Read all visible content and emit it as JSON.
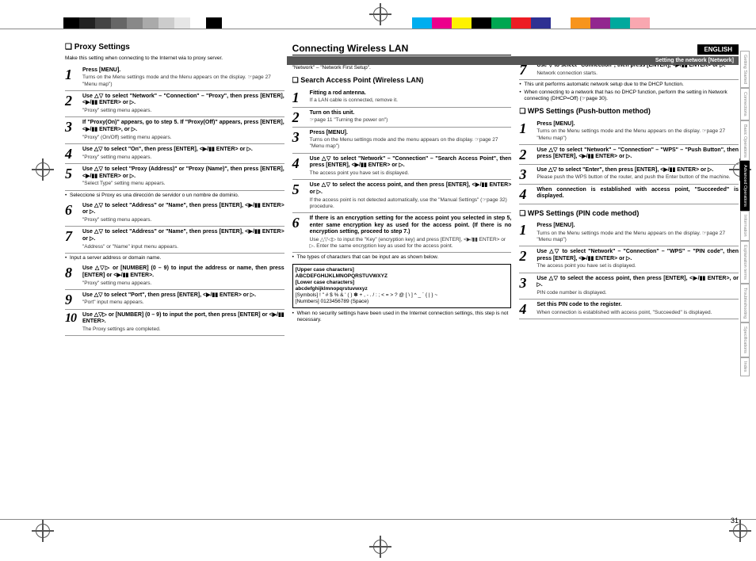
{
  "registration": {
    "grayscale": [
      "#000000",
      "#222222",
      "#444444",
      "#666666",
      "#888888",
      "#aaaaaa",
      "#cccccc",
      "#e6e6e6",
      "#ffffff",
      "#000000"
    ],
    "colorbar": [
      "#00aeef",
      "#ec008c",
      "#fff200",
      "#000000",
      "#00a651",
      "#ed1c24",
      "#2e3192",
      "#ffffff",
      "#f7941d",
      "#92278f",
      "#00a99d",
      "#f9a7b0"
    ]
  },
  "lang_label": "ENGLISH",
  "topbar_label": "Setting the network [Network]",
  "page_number": "31",
  "side_tabs": [
    {
      "label": "Getting Started",
      "active": false
    },
    {
      "label": "Connections",
      "active": false
    },
    {
      "label": "Basic Operations",
      "active": false
    },
    {
      "label": "Advanced Operations",
      "active": true
    },
    {
      "label": "Information",
      "active": false
    },
    {
      "label": "Explanation terms",
      "active": false
    },
    {
      "label": "Troubleshooting",
      "active": false
    },
    {
      "label": "Specifications",
      "active": false
    },
    {
      "label": "Index",
      "active": false
    }
  ],
  "col1": {
    "h2": "❏ Proxy Settings",
    "intro": "Make this setting when connecting to the Internet wia to proxy server.",
    "steps": [
      {
        "n": "1",
        "bold": "Press [MENU].",
        "note": "Turns on the Menu settings mode and the Menu appears on the display. ☞page 27 \"Menu map\")"
      },
      {
        "n": "2",
        "bold": "Use △▽ to select \"Network\" – \"Connection\" – \"Proxy\", then press [ENTER], <▶/▮▮ ENTER> or ▷.",
        "note": "\"Proxy\" setting menu appears."
      },
      {
        "n": "3",
        "bold": "If \"Proxy(On)\" appears, go to step 5.\nIf \"Proxy(Off)\" appears, press [ENTER], <▶/▮▮ ENTER>, or ▷.",
        "note": "\"Proxy\" (On/Off) setting menu appears."
      },
      {
        "n": "4",
        "bold": "Use △▽ to select \"On\", then press [ENTER], <▶/▮▮ ENTER> or ▷.",
        "note": "\"Proxy\" setting menu appears."
      },
      {
        "n": "5",
        "bold": "Use △▽ to select \"Proxy (Address)\" or \"Proxy (Name)\", then press [ENTER], <▶/▮▮ ENTER> or ▷.",
        "note": "\"Select Type\" setting menu appears."
      }
    ],
    "bullets1": [
      "Seleccione si Proxy es una dirección de servidor o un nombre de dominio."
    ],
    "steps2": [
      {
        "n": "6",
        "bold": "Use △▽ to select \"Address\" or \"Name\", then press [ENTER], <▶/▮▮ ENTER> or ▷.",
        "note": "\"Proxy\" setting menu appears."
      },
      {
        "n": "7",
        "bold": "Use △▽ to select \"Address\" or \"Name\", then press [ENTER], <▶/▮▮ ENTER> or ▷.",
        "note": "\"Address\" or \"Name\" input menu appears."
      }
    ],
    "bullets2": [
      "Input a server address or domain name."
    ],
    "steps3": [
      {
        "n": "8",
        "bold": "Use △▽▷ or [NUMBER] (0 – 9) to input the address or name, then press [ENTER] or <▶/▮▮ ENTER>.",
        "note": "\"Proxy\" setting menu appears."
      },
      {
        "n": "9",
        "bold": "Use △▽ to select \"Port\", then press [ENTER], <▶/▮▮ ENTER> or ▷.",
        "note": "\"Port\" input menu appears."
      },
      {
        "n": "10",
        "bold": "Use △▽▷ or [NUMBER] (0 – 9) to input the port, then press [ENTER] or <▶/▮▮ ENTER>.",
        "note": "The Proxy settings are completed."
      }
    ]
  },
  "col2": {
    "h1": "Connecting Wireless LAN",
    "intro": "If you cancelled \"Network First Setup\" or changed the network environment, perform \"Menu\" – \"Network\" – \"Network First Setup\".",
    "sub1": "❏ Search Access Point (Wireless LAN)",
    "steps": [
      {
        "n": "1",
        "bold": "Fitting a rod antenna.",
        "note": "If a LAN cable is connected, remove it."
      },
      {
        "n": "2",
        "bold": "Turn on this unit.",
        "note": "☞page 11 \"Turning the power on\")"
      },
      {
        "n": "3",
        "bold": "Press [MENU].",
        "note": "Turns on the Menu settings mode and the menu appears on the display. ☞page 27 \"Menu map\")"
      },
      {
        "n": "4",
        "bold": "Use △▽ to select \"Network\" – \"Connection\" – \"Search Access Point\", then press [ENTER], <▶/▮▮ ENTER> or ▷.",
        "note": "The access point you have set is displayed."
      },
      {
        "n": "5",
        "bold": "Use △▽ to select the access point, and then press [ENTER], <▶/▮▮ ENTER> or ▷.",
        "note": "If the access point is not detected automatically, use the \"Manual Settings\" (☞page 32) procedure."
      },
      {
        "n": "6",
        "bold": "If there is an encryption setting for the access point you selected in step 5, enter same encryption key as used for the access point. (If there is no encryption setting, proceed to step 7.)",
        "note": "Use △▽◁▷ to input the \"Key\" (encryption key) and press [ENTER], <▶/▮▮ ENTER> or ▷. Enter the same encryption key as used for the access point."
      }
    ],
    "bullets": [
      "The types of characters that can be input are as shown below."
    ],
    "charbox": {
      "l1": "[Upper case characters]",
      "l2": "ABCDEFGHIJKLMNOPQRSTUVWXYZ",
      "l3": "[Lower case characters]",
      "l4": "abcdefghijklmnopqrstuvwxyz",
      "l5": "[Symbols]  ! \" # $ % & ' ( ) ✽ + , - . / : ; < = > ? @ [ \\ ] ^ _ ` { | } ~",
      "l6": "[Numbers]  0123456789 (Space)"
    },
    "bullets2": [
      "When no security settings have been used in the Internet connection settings, this step is not necessary."
    ]
  },
  "col3": {
    "step7": {
      "n": "7",
      "bold": "Use ▽ to select \"Connection\", then press [ENTER], <▶/▮▮ ENTER> or ▷.",
      "note": "Network connection starts."
    },
    "bullets": [
      "This unit performs automatic network setup due to the DHCP function.",
      "When connecting to a network that has no DHCP function, perform the setting in Network connecting (DHCP=Off) (☞page 30)."
    ],
    "sub2": "❏ WPS Settings (Push-button method)",
    "stepsA": [
      {
        "n": "1",
        "bold": "Press [MENU].",
        "note": "Turns on the Menu settings mode and the Menu appears on the display. ☞page 27 \"Menu map\")"
      },
      {
        "n": "2",
        "bold": "Use △▽ to select \"Network\" – \"Connection\" – \"WPS\" – \"Push Button\", then press [ENTER], <▶/▮▮ ENTER> or ▷.",
        "note": ""
      },
      {
        "n": "3",
        "bold": "Use △▽ to select \"Enter\", then press [ENTER], <▶/▮▮ ENTER> or ▷.",
        "note": "Please push the WPS button of the router, and push the Enter button of the machine."
      },
      {
        "n": "4",
        "bold": "When connection is established with access point, \"Succeeded\" is displayed.",
        "note": ""
      }
    ],
    "sub3": "❏ WPS Settings (PIN code method)",
    "stepsB": [
      {
        "n": "1",
        "bold": "Press [MENU].",
        "note": "Turns on the Menu settings mode and the Menu appears on the display. ☞page 27 \"Menu map\")"
      },
      {
        "n": "2",
        "bold": "Use △▽ to select \"Network\" – \"Connection\" – \"WPS\" – \"PIN code\", then press [ENTER], <▶/▮▮ ENTER> or ▷.",
        "note": "The access point you have set is displayed."
      },
      {
        "n": "3",
        "bold": "Use △▽ to select the access point, then press [ENTER], <▶/▮▮ ENTER>, or ▷.",
        "note": "PIN code number is displayed."
      },
      {
        "n": "4",
        "bold": "Set this PIN code to the register.",
        "note": "When connection is established with access point, \"Succeeded\" is displayed."
      }
    ]
  }
}
